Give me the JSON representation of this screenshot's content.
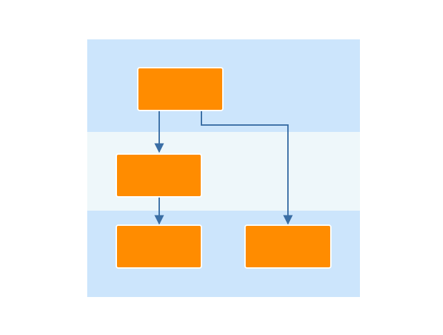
{
  "diagram": {
    "colors": {
      "background": "#ffffff",
      "lane_blue": "#cce5fc",
      "lane_pale": "#eef7fa",
      "node_fill": "#ff8c00",
      "node_border": "#ffffff",
      "edge": "#3a6ea5"
    },
    "lanes": [
      {
        "id": "lane-top",
        "label": "",
        "color": "#cce5fc"
      },
      {
        "id": "lane-middle",
        "label": "",
        "color": "#eef7fa"
      },
      {
        "id": "lane-bottom",
        "label": "",
        "color": "#cce5fc"
      }
    ],
    "nodes": [
      {
        "id": "node-top",
        "label": ""
      },
      {
        "id": "node-middle-left",
        "label": ""
      },
      {
        "id": "node-bottom-left",
        "label": ""
      },
      {
        "id": "node-bottom-right",
        "label": ""
      }
    ],
    "edges": [
      {
        "from": "node-top",
        "to": "node-middle-left"
      },
      {
        "from": "node-top",
        "to": "node-bottom-right"
      },
      {
        "from": "node-middle-left",
        "to": "node-bottom-left"
      }
    ]
  }
}
